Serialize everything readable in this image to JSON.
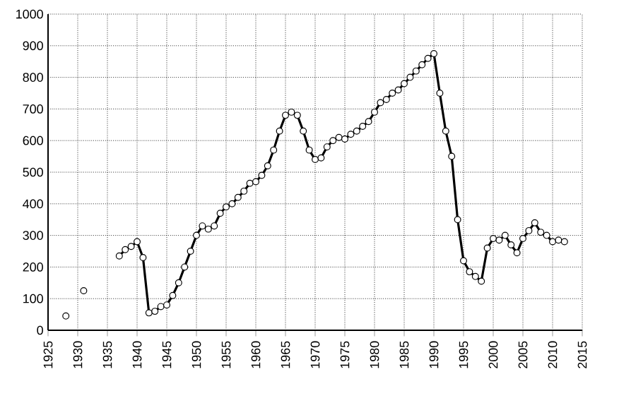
{
  "chart_data": {
    "type": "line",
    "x": [
      1928,
      1929,
      1931,
      1932,
      1937,
      1938,
      1939,
      1940,
      1941,
      1942,
      1943,
      1944,
      1945,
      1946,
      1947,
      1948,
      1949,
      1950,
      1951,
      1952,
      1953,
      1954,
      1955,
      1956,
      1957,
      1958,
      1959,
      1960,
      1961,
      1962,
      1963,
      1964,
      1965,
      1966,
      1967,
      1968,
      1969,
      1970,
      1971,
      1972,
      1973,
      1974,
      1975,
      1976,
      1977,
      1978,
      1979,
      1980,
      1981,
      1982,
      1983,
      1984,
      1985,
      1986,
      1987,
      1988,
      1989,
      1990,
      1991,
      1992,
      1993,
      1994,
      1995,
      1996,
      1997,
      1998,
      1999,
      2000,
      2001,
      2002,
      2003,
      2004,
      2005,
      2006,
      2007,
      2008,
      2009,
      2010,
      2011,
      2012
    ],
    "series": [
      {
        "color": "#000000",
        "values": [
          45,
          null,
          125,
          null,
          235,
          255,
          265,
          280,
          230,
          55,
          60,
          75,
          80,
          110,
          150,
          200,
          250,
          300,
          330,
          320,
          330,
          370,
          390,
          400,
          420,
          440,
          465,
          470,
          490,
          520,
          570,
          630,
          680,
          690,
          680,
          630,
          570,
          540,
          545,
          580,
          600,
          610,
          605,
          620,
          630,
          645,
          660,
          690,
          720,
          730,
          750,
          760,
          780,
          800,
          820,
          840,
          860,
          875,
          750,
          630,
          550,
          350,
          220,
          185,
          170,
          155,
          260,
          290,
          285,
          300,
          270,
          245,
          290,
          315,
          340,
          310,
          300,
          280,
          285,
          280
        ]
      }
    ],
    "xlim": [
      1925,
      2015
    ],
    "xticks": [
      1925,
      1930,
      1935,
      1940,
      1945,
      1950,
      1955,
      1960,
      1965,
      1970,
      1975,
      1980,
      1985,
      1990,
      1995,
      2000,
      2005,
      2010,
      2015
    ],
    "ylim": [
      0,
      1000
    ],
    "yticks": [
      0,
      100,
      200,
      300,
      400,
      500,
      600,
      700,
      800,
      900,
      1000
    ],
    "grid": true,
    "marker": "circle",
    "line_style": "solid"
  }
}
